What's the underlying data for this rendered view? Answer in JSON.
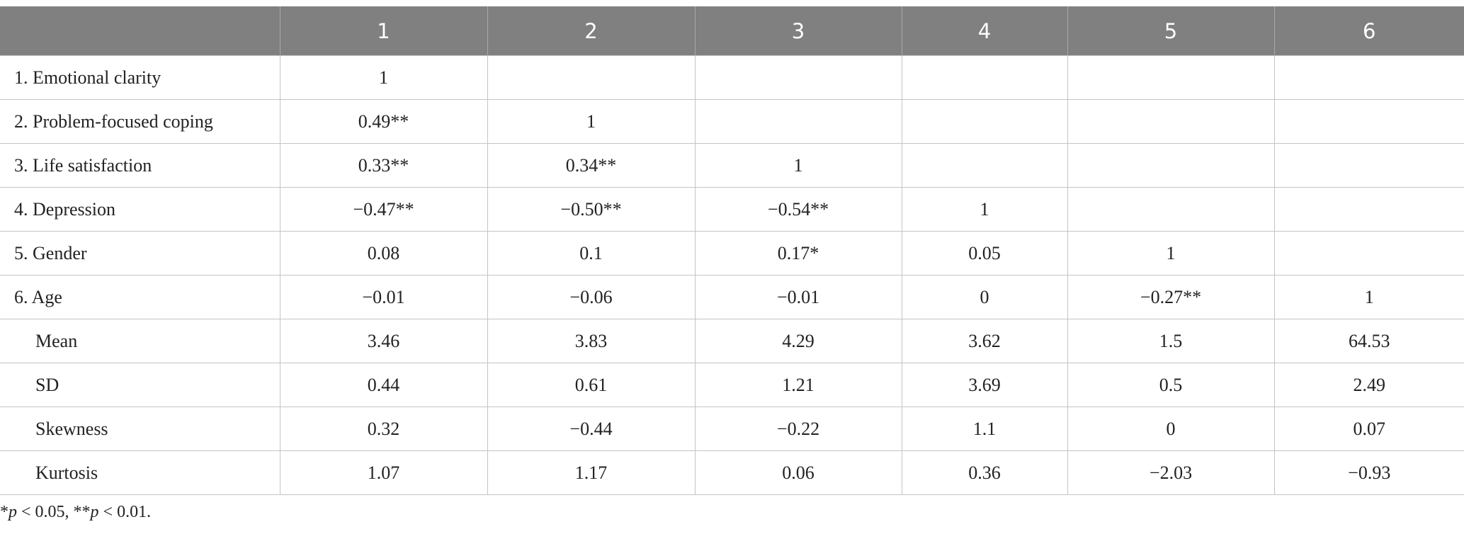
{
  "table": {
    "columns": [
      "1",
      "2",
      "3",
      "4",
      "5",
      "6"
    ],
    "rows": [
      {
        "label": "1. Emotional clarity",
        "cells": [
          "1"
        ]
      },
      {
        "label": "2. Problem-focused coping",
        "cells": [
          "0.49**",
          "1"
        ]
      },
      {
        "label": "3. Life satisfaction",
        "cells": [
          "0.33**",
          "0.34**",
          "1"
        ]
      },
      {
        "label": "4. Depression",
        "cells": [
          "−0.47**",
          "−0.50**",
          "−0.54**",
          "1"
        ]
      },
      {
        "label": "5. Gender",
        "cells": [
          "0.08",
          "0.1",
          "0.17*",
          "0.05",
          "1"
        ]
      },
      {
        "label": "6. Age",
        "cells": [
          "−0.01",
          "−0.06",
          "−0.01",
          "0",
          "−0.27**",
          "1"
        ]
      },
      {
        "label": "Mean",
        "cells": [
          "3.46",
          "3.83",
          "4.29",
          "3.62",
          "1.5",
          "64.53"
        ]
      },
      {
        "label": "SD",
        "cells": [
          "0.44",
          "0.61",
          "1.21",
          "3.69",
          "0.5",
          "2.49"
        ]
      },
      {
        "label": "Skewness",
        "cells": [
          "0.32",
          "−0.44",
          "−0.22",
          "1.1",
          "0",
          "0.07"
        ]
      },
      {
        "label": "Kurtosis",
        "cells": [
          "1.07",
          "1.17",
          "0.06",
          "0.36",
          "−2.03",
          "−0.93"
        ]
      }
    ]
  },
  "footnote": [
    "*",
    "p",
    " < 0.05, **",
    "p",
    " < 0.01."
  ]
}
